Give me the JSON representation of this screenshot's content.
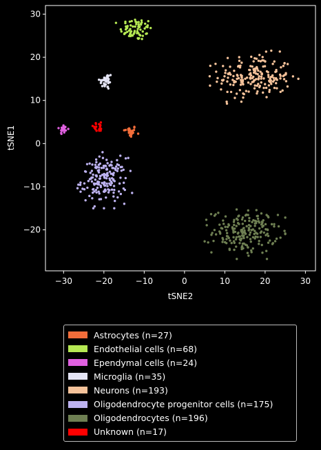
{
  "chart_data": {
    "type": "scatter",
    "xlabel": "tSNE2",
    "ylabel": "tSNE1",
    "xlim": [
      -34.5,
      32.5
    ],
    "ylim": [
      -29.5,
      32
    ],
    "xticks": [
      -30,
      -20,
      -10,
      0,
      10,
      20,
      30
    ],
    "yticks": [
      -20,
      -10,
      0,
      10,
      20,
      30
    ],
    "grid": false,
    "legend_position": "below",
    "background": "#000000",
    "series": [
      {
        "name": "Astrocytes (n=27)",
        "color": "#f26d3a",
        "n": 27,
        "cx": -13.5,
        "cy": 2.8,
        "sx": 0.8,
        "sy": 0.7
      },
      {
        "name": "Endothelial cells (n=68)",
        "color": "#b5e853",
        "n": 68,
        "cx": -12.0,
        "cy": 26.5,
        "sx": 2.0,
        "sy": 1.3
      },
      {
        "name": "Ependymal cells (n=24)",
        "color": "#e060e0",
        "n": 24,
        "cx": -30.0,
        "cy": 3.3,
        "sx": 0.5,
        "sy": 0.6
      },
      {
        "name": "Microglia (n=35)",
        "color": "#e4e4f4",
        "n": 35,
        "cx": -19.5,
        "cy": 14.5,
        "sx": 0.8,
        "sy": 1.0
      },
      {
        "name": "Neurons (n=193)",
        "color": "#f5c29a",
        "n": 193,
        "cx": 17.5,
        "cy": 15.5,
        "sx": 4.5,
        "sy": 2.5
      },
      {
        "name": "Oligodendrocyte progenitor cells (n=175)",
        "color": "#bdb2f0",
        "n": 175,
        "cx": -20.0,
        "cy": -8.5,
        "sx": 2.8,
        "sy": 2.6
      },
      {
        "name": "Oligodendrocytes (n=196)",
        "color": "#6e7f52",
        "n": 196,
        "cx": 15.0,
        "cy": -20.5,
        "sx": 4.0,
        "sy": 2.5
      },
      {
        "name": "Unknown (n=17)",
        "color": "#ff0000",
        "n": 17,
        "cx": -21.5,
        "cy": 3.8,
        "sx": 1.0,
        "sy": 0.5
      }
    ]
  }
}
